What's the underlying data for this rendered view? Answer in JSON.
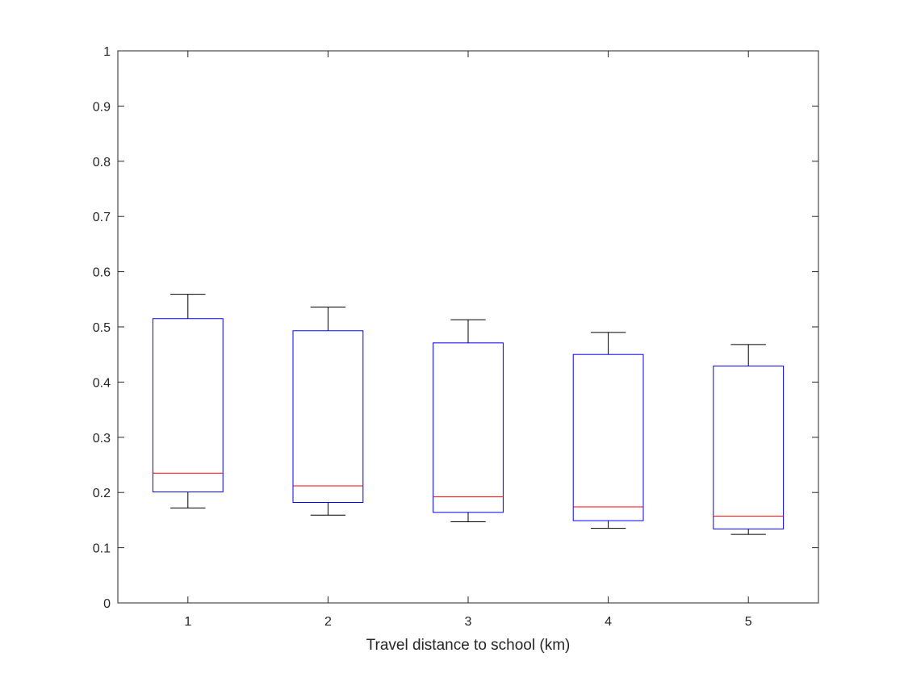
{
  "chart_data": {
    "type": "box",
    "xlabel": "Travel distance to school (km)",
    "ylabel": "",
    "title": "",
    "categories": [
      "1",
      "2",
      "3",
      "4",
      "5"
    ],
    "boxes": [
      {
        "category": "1",
        "whisker_low": 0.172,
        "q1": 0.201,
        "median": 0.235,
        "q3": 0.515,
        "whisker_high": 0.559
      },
      {
        "category": "2",
        "whisker_low": 0.159,
        "q1": 0.182,
        "median": 0.212,
        "q3": 0.493,
        "whisker_high": 0.536
      },
      {
        "category": "3",
        "whisker_low": 0.147,
        "q1": 0.164,
        "median": 0.192,
        "q3": 0.471,
        "whisker_high": 0.513
      },
      {
        "category": "4",
        "whisker_low": 0.135,
        "q1": 0.149,
        "median": 0.174,
        "q3": 0.45,
        "whisker_high": 0.49
      },
      {
        "category": "5",
        "whisker_low": 0.124,
        "q1": 0.134,
        "median": 0.157,
        "q3": 0.429,
        "whisker_high": 0.468
      }
    ],
    "ylim": [
      0,
      1
    ],
    "yticks": [
      "0",
      "0.1",
      "0.2",
      "0.3",
      "0.4",
      "0.5",
      "0.6",
      "0.7",
      "0.8",
      "0.9",
      "1"
    ],
    "xticks": [
      "1",
      "2",
      "3",
      "4",
      "5"
    ],
    "grid": false,
    "colors": {
      "box": "#0000ff",
      "median": "#ff0000",
      "whisker": "#000000",
      "axis": "#262626"
    }
  }
}
